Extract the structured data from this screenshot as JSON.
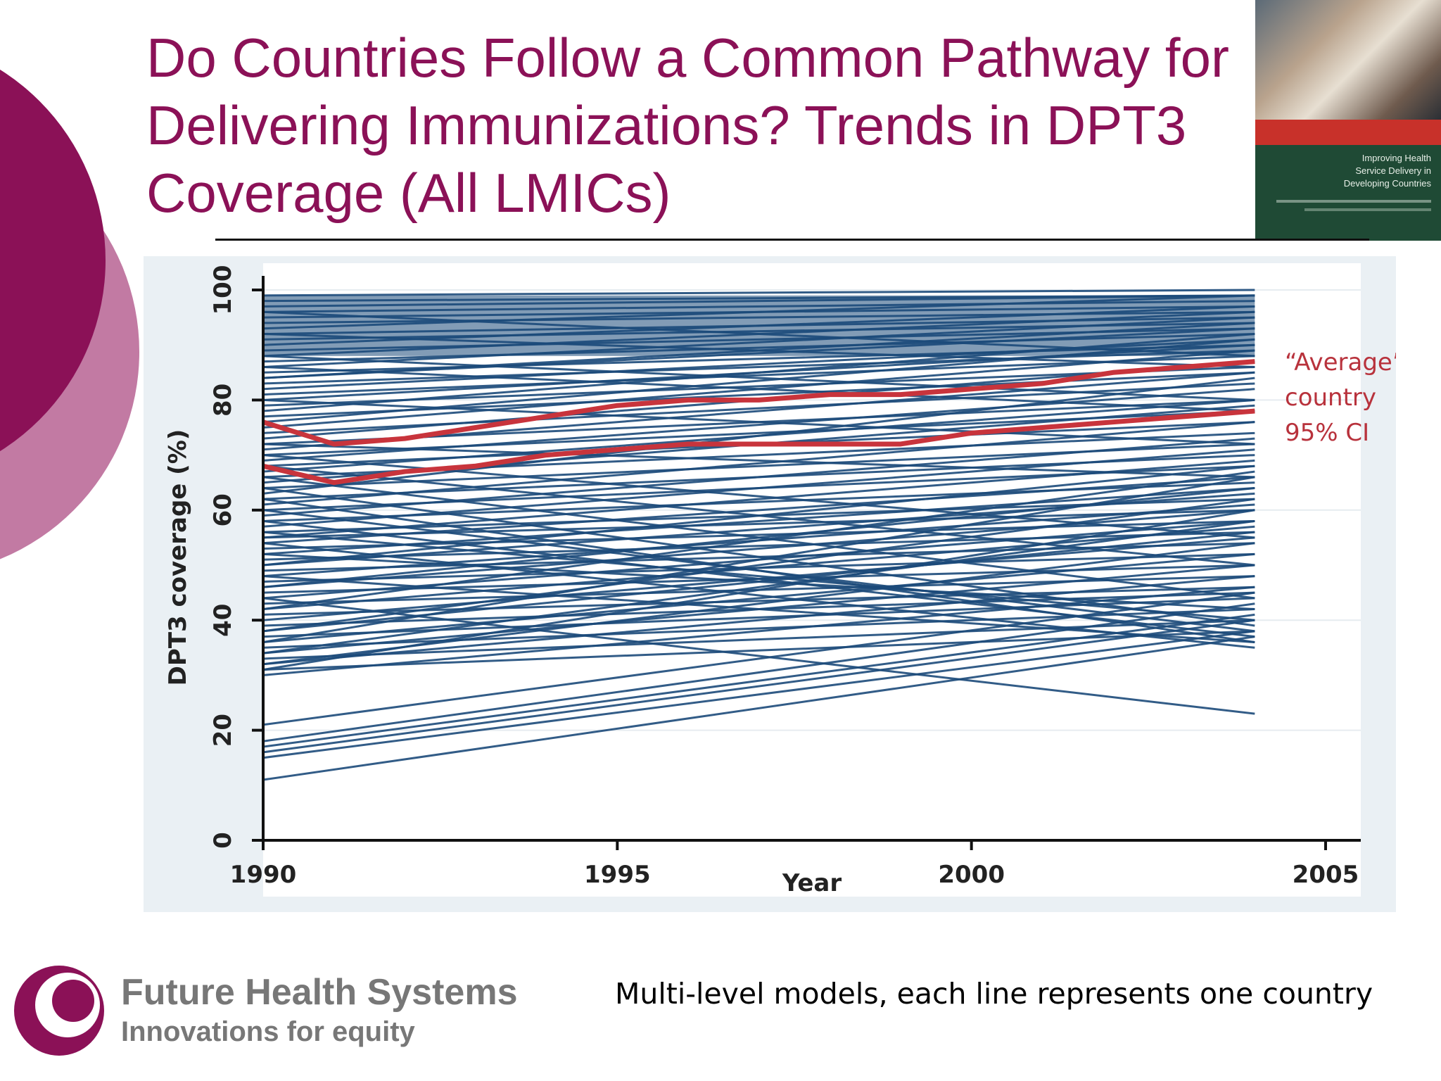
{
  "slide": {
    "title_lines": [
      "Do Countries Follow a Common Pathway for",
      "Delivering Immunizations? Trends in DPT3",
      "Coverage (All LMICs)"
    ],
    "caption": "Multi-level models, each line represents one country",
    "book_cover_title": "Improving Health\nService Delivery in\nDeveloping Countries"
  },
  "logo": {
    "name": "Future Health Systems",
    "tagline": "Innovations for equity"
  },
  "colors": {
    "accent": "#8b1157",
    "accent_light": "#c27aa3",
    "country_line": "#1c4a7a",
    "average_line": "#c8343c",
    "annotation": "#b8323c",
    "plot_background": "#eaf0f4"
  },
  "chart_data": {
    "type": "line",
    "xlabel": "Year",
    "ylabel": "DPT3 coverage (%)",
    "xlim": [
      1990,
      2005
    ],
    "ylim": [
      0,
      100
    ],
    "x_ticks": [
      "1990",
      "1995",
      "2000",
      "2005"
    ],
    "y_ticks": [
      "0",
      "20",
      "40",
      "60",
      "80",
      "100"
    ],
    "grid": true,
    "annotation": [
      "“Average”",
      "country",
      "95% CI"
    ],
    "x": [
      1990,
      1991,
      1992,
      1993,
      1994,
      1995,
      1996,
      1997,
      1998,
      1999,
      2000,
      2001,
      2002,
      2003,
      2004
    ],
    "highlight_series": [
      {
        "role": "upper",
        "values": [
          76,
          72,
          73,
          75,
          77,
          79,
          80,
          80,
          81,
          81,
          82,
          83,
          85,
          86,
          87
        ]
      },
      {
        "role": "lower",
        "values": [
          68,
          65,
          67,
          68,
          70,
          71,
          72,
          72,
          72,
          72,
          74,
          75,
          76,
          77,
          78
        ]
      }
    ],
    "country_series": [
      {
        "start": 99,
        "end": 100
      },
      {
        "start": 98,
        "end": 99
      },
      {
        "start": 97,
        "end": 99
      },
      {
        "start": 96,
        "end": 98
      },
      {
        "start": 95,
        "end": 97
      },
      {
        "start": 94,
        "end": 96
      },
      {
        "start": 93,
        "end": 99
      },
      {
        "start": 92,
        "end": 95
      },
      {
        "start": 91,
        "end": 94
      },
      {
        "start": 90,
        "end": 97
      },
      {
        "start": 89,
        "end": 93
      },
      {
        "start": 88,
        "end": 96
      },
      {
        "start": 87,
        "end": 92
      },
      {
        "start": 86,
        "end": 95
      },
      {
        "start": 85,
        "end": 90
      },
      {
        "start": 84,
        "end": 93
      },
      {
        "start": 83,
        "end": 89
      },
      {
        "start": 82,
        "end": 91
      },
      {
        "start": 81,
        "end": 88
      },
      {
        "start": 80,
        "end": 90
      },
      {
        "start": 79,
        "end": 86
      },
      {
        "start": 78,
        "end": 92
      },
      {
        "start": 77,
        "end": 85
      },
      {
        "start": 75,
        "end": 89
      },
      {
        "start": 74,
        "end": 83
      },
      {
        "start": 73,
        "end": 87
      },
      {
        "start": 72,
        "end": 80
      },
      {
        "start": 71,
        "end": 85
      },
      {
        "start": 70,
        "end": 78
      },
      {
        "start": 69,
        "end": 82
      },
      {
        "start": 68,
        "end": 76
      },
      {
        "start": 67,
        "end": 80
      },
      {
        "start": 66,
        "end": 74
      },
      {
        "start": 65,
        "end": 79
      },
      {
        "start": 64,
        "end": 72
      },
      {
        "start": 63,
        "end": 84
      },
      {
        "start": 62,
        "end": 70
      },
      {
        "start": 61,
        "end": 76
      },
      {
        "start": 60,
        "end": 68
      },
      {
        "start": 59,
        "end": 73
      },
      {
        "start": 58,
        "end": 65
      },
      {
        "start": 57,
        "end": 71
      },
      {
        "start": 56,
        "end": 62
      },
      {
        "start": 55,
        "end": 69
      },
      {
        "start": 55,
        "end": 60
      },
      {
        "start": 54,
        "end": 66
      },
      {
        "start": 53,
        "end": 58
      },
      {
        "start": 52,
        "end": 64
      },
      {
        "start": 51,
        "end": 56
      },
      {
        "start": 50,
        "end": 63
      },
      {
        "start": 49,
        "end": 54
      },
      {
        "start": 48,
        "end": 61
      },
      {
        "start": 47,
        "end": 52
      },
      {
        "start": 46,
        "end": 60
      },
      {
        "start": 45,
        "end": 50
      },
      {
        "start": 44,
        "end": 58
      },
      {
        "start": 43,
        "end": 48
      },
      {
        "start": 42,
        "end": 57
      },
      {
        "start": 41,
        "end": 46
      },
      {
        "start": 40,
        "end": 55
      },
      {
        "start": 39,
        "end": 45
      },
      {
        "start": 38,
        "end": 56
      },
      {
        "start": 37,
        "end": 44
      },
      {
        "start": 36,
        "end": 52
      },
      {
        "start": 35,
        "end": 42
      },
      {
        "start": 34,
        "end": 50
      },
      {
        "start": 33,
        "end": 40
      },
      {
        "start": 32,
        "end": 48
      },
      {
        "start": 31,
        "end": 38
      },
      {
        "start": 30,
        "end": 46
      },
      {
        "start": 62,
        "end": 36
      },
      {
        "start": 60,
        "end": 38
      },
      {
        "start": 58,
        "end": 37
      },
      {
        "start": 56,
        "end": 40
      },
      {
        "start": 54,
        "end": 35
      },
      {
        "start": 52,
        "end": 42
      },
      {
        "start": 66,
        "end": 44
      },
      {
        "start": 64,
        "end": 39
      },
      {
        "start": 48,
        "end": 36
      },
      {
        "start": 44,
        "end": 23
      },
      {
        "start": 70,
        "end": 55
      },
      {
        "start": 68,
        "end": 50
      },
      {
        "start": 50,
        "end": 68
      },
      {
        "start": 46,
        "end": 64
      },
      {
        "start": 42,
        "end": 67
      },
      {
        "start": 38,
        "end": 62
      },
      {
        "start": 36,
        "end": 66
      },
      {
        "start": 34,
        "end": 58
      },
      {
        "start": 32,
        "end": 54
      },
      {
        "start": 31,
        "end": 60
      },
      {
        "start": 21,
        "end": 45
      },
      {
        "start": 18,
        "end": 43
      },
      {
        "start": 17,
        "end": 41
      },
      {
        "start": 16,
        "end": 40
      },
      {
        "start": 15,
        "end": 38
      },
      {
        "start": 11,
        "end": 37
      },
      {
        "start": 92,
        "end": 86
      },
      {
        "start": 88,
        "end": 80
      },
      {
        "start": 84,
        "end": 94
      },
      {
        "start": 80,
        "end": 72
      },
      {
        "start": 76,
        "end": 91
      },
      {
        "start": 72,
        "end": 66
      },
      {
        "start": 96,
        "end": 88
      },
      {
        "start": 86,
        "end": 78
      }
    ]
  }
}
